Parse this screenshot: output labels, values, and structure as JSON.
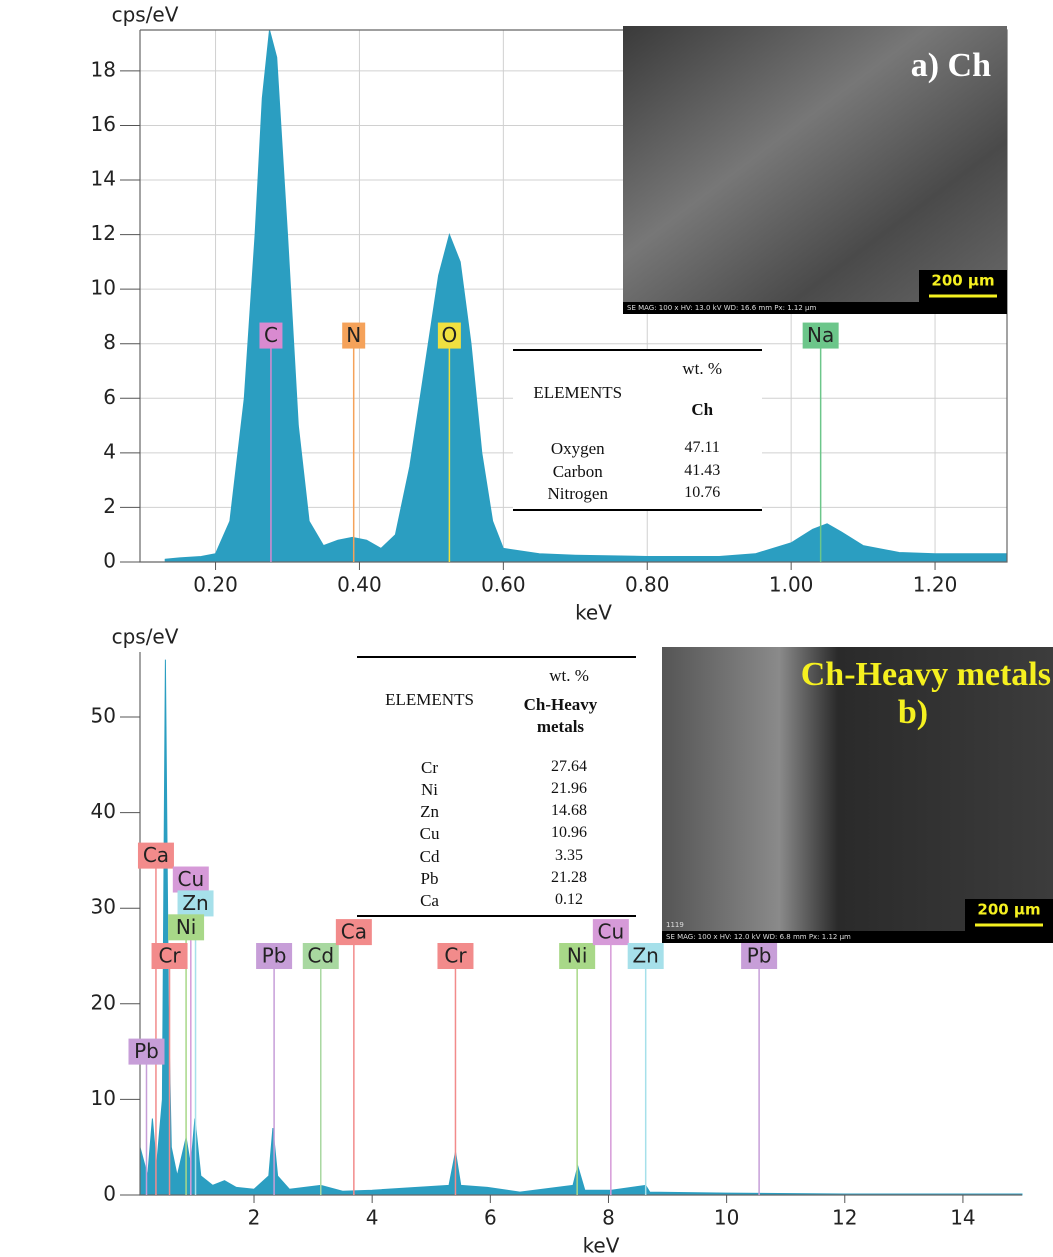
{
  "chart_data": [
    {
      "type": "area",
      "y_label": "cps/eV",
      "x_label": "keV",
      "color": "#2b9ec1",
      "grid": true,
      "xlim": [
        0.095,
        1.3
      ],
      "ylim": [
        0,
        19.5
      ],
      "xticks": [
        {
          "value": 0.2,
          "label": "0.20"
        },
        {
          "value": 0.4,
          "label": "0.40"
        },
        {
          "value": 0.6,
          "label": "0.60"
        },
        {
          "value": 0.8,
          "label": "0.80"
        },
        {
          "value": 1.0,
          "label": "1.00"
        },
        {
          "value": 1.2,
          "label": "1.20"
        }
      ],
      "yticks": [
        0,
        2,
        4,
        6,
        8,
        10,
        12,
        14,
        16,
        18
      ],
      "x": [
        0.13,
        0.15,
        0.18,
        0.2,
        0.22,
        0.24,
        0.255,
        0.265,
        0.275,
        0.285,
        0.3,
        0.315,
        0.33,
        0.35,
        0.37,
        0.39,
        0.41,
        0.43,
        0.45,
        0.47,
        0.49,
        0.51,
        0.525,
        0.54,
        0.555,
        0.57,
        0.585,
        0.6,
        0.65,
        0.7,
        0.8,
        0.9,
        0.95,
        1.0,
        1.03,
        1.05,
        1.07,
        1.1,
        1.15,
        1.2,
        1.25,
        1.3
      ],
      "values": [
        0.1,
        0.15,
        0.2,
        0.3,
        1.5,
        6,
        12,
        17,
        19.5,
        18.5,
        12,
        5,
        1.5,
        0.6,
        0.8,
        0.9,
        0.8,
        0.5,
        1,
        3.5,
        7,
        10.5,
        12,
        11,
        8,
        4,
        1.5,
        0.5,
        0.3,
        0.25,
        0.2,
        0.2,
        0.3,
        0.7,
        1.2,
        1.4,
        1.1,
        0.6,
        0.35,
        0.3,
        0.3,
        0.3
      ],
      "markers": [
        {
          "label": "C",
          "x": 0.277,
          "color": "#d98ad0"
        },
        {
          "label": "N",
          "x": 0.392,
          "color": "#f5a25a"
        },
        {
          "label": "O",
          "x": 0.525,
          "color": "#f0e040"
        },
        {
          "label": "Na",
          "x": 1.041,
          "color": "#6cc68a"
        }
      ],
      "table": {
        "column_label": "ELEMENTS",
        "unit": "wt. %",
        "sample": "Ch",
        "rows": [
          [
            "Oxygen",
            "47.11"
          ],
          [
            "Carbon",
            "41.43"
          ],
          [
            "Nitrogen",
            "10.76"
          ]
        ]
      },
      "inset": {
        "title": "a) Ch",
        "title_color": "#ffffff",
        "scale_bar": "200 µm",
        "info": "SE MAG: 100 x HV: 13.0 kV WD: 16.6 mm Px: 1.12 µm"
      }
    },
    {
      "type": "area",
      "y_label": "cps/eV",
      "x_label": "keV",
      "color": "#2b9ec1",
      "grid": false,
      "xlim": [
        0.07,
        15
      ],
      "ylim": [
        0,
        56.8
      ],
      "xticks": [
        2,
        4,
        6,
        8,
        10,
        12,
        14
      ],
      "yticks": [
        0,
        10,
        20,
        30,
        40,
        50
      ],
      "x": [
        0.07,
        0.2,
        0.28,
        0.35,
        0.45,
        0.5,
        0.55,
        0.6,
        0.7,
        0.85,
        0.93,
        1.0,
        1.1,
        1.3,
        1.5,
        1.7,
        2.0,
        2.25,
        2.32,
        2.4,
        2.6,
        3.13,
        3.5,
        4.0,
        5.3,
        5.41,
        5.5,
        5.95,
        6.5,
        7.4,
        7.48,
        7.6,
        8.05,
        8.63,
        8.7,
        10,
        12,
        15
      ],
      "values": [
        5,
        2,
        8,
        3,
        10,
        56,
        20,
        5,
        2,
        6,
        3,
        8,
        2,
        1,
        1.5,
        0.8,
        0.6,
        2,
        7,
        2,
        0.6,
        1,
        0.4,
        0.5,
        1,
        4.5,
        1,
        0.8,
        0.3,
        1,
        3,
        0.5,
        0.5,
        1,
        0.3,
        0.2,
        0.1,
        0.1
      ],
      "markers": [
        {
          "label": "Ca",
          "x": 0.34,
          "color": "#f28b8b"
        },
        {
          "label": "Cu",
          "x": 0.93,
          "color": "#d69ad8"
        },
        {
          "label": "Zn",
          "x": 1.01,
          "color": "#a6e0ea"
        },
        {
          "label": "Ni",
          "x": 0.85,
          "color": "#a8d888"
        },
        {
          "label": "Cr",
          "x": 0.57,
          "color": "#f28b8b"
        },
        {
          "label": "Pb",
          "x": 0.18,
          "color": "#c79ed8"
        },
        {
          "label": "Pb",
          "x": 2.34,
          "color": "#c79ed8"
        },
        {
          "label": "Cd",
          "x": 3.13,
          "color": "#a8d8a0"
        },
        {
          "label": "Ca",
          "x": 3.69,
          "color": "#f28b8b"
        },
        {
          "label": "Cr",
          "x": 5.41,
          "color": "#f28b8b"
        },
        {
          "label": "Ni",
          "x": 7.47,
          "color": "#a8d888"
        },
        {
          "label": "Cu",
          "x": 8.04,
          "color": "#d69ad8"
        },
        {
          "label": "Zn",
          "x": 8.63,
          "color": "#a6e0ea"
        },
        {
          "label": "Pb",
          "x": 10.55,
          "color": "#c79ed8"
        }
      ],
      "table": {
        "column_label": "ELEMENTS",
        "unit": "wt. %",
        "sample": "Ch-Heavy metals",
        "rows": [
          [
            "Cr",
            "27.64"
          ],
          [
            "Ni",
            "21.96"
          ],
          [
            "Zn",
            "14.68"
          ],
          [
            "Cu",
            "10.96"
          ],
          [
            "Cd",
            "3.35"
          ],
          [
            "Pb",
            "21.28"
          ],
          [
            "Ca",
            "0.12"
          ]
        ]
      },
      "inset": {
        "title": "Ch-Heavy metals",
        "subtitle": "b)",
        "title_color": "#f5f020",
        "scale_bar": "200 µm",
        "code": "1119",
        "info": "SE MAG: 100 x HV: 12.0 kV WD: 6.8 mm Px: 1.12 µm"
      }
    }
  ]
}
